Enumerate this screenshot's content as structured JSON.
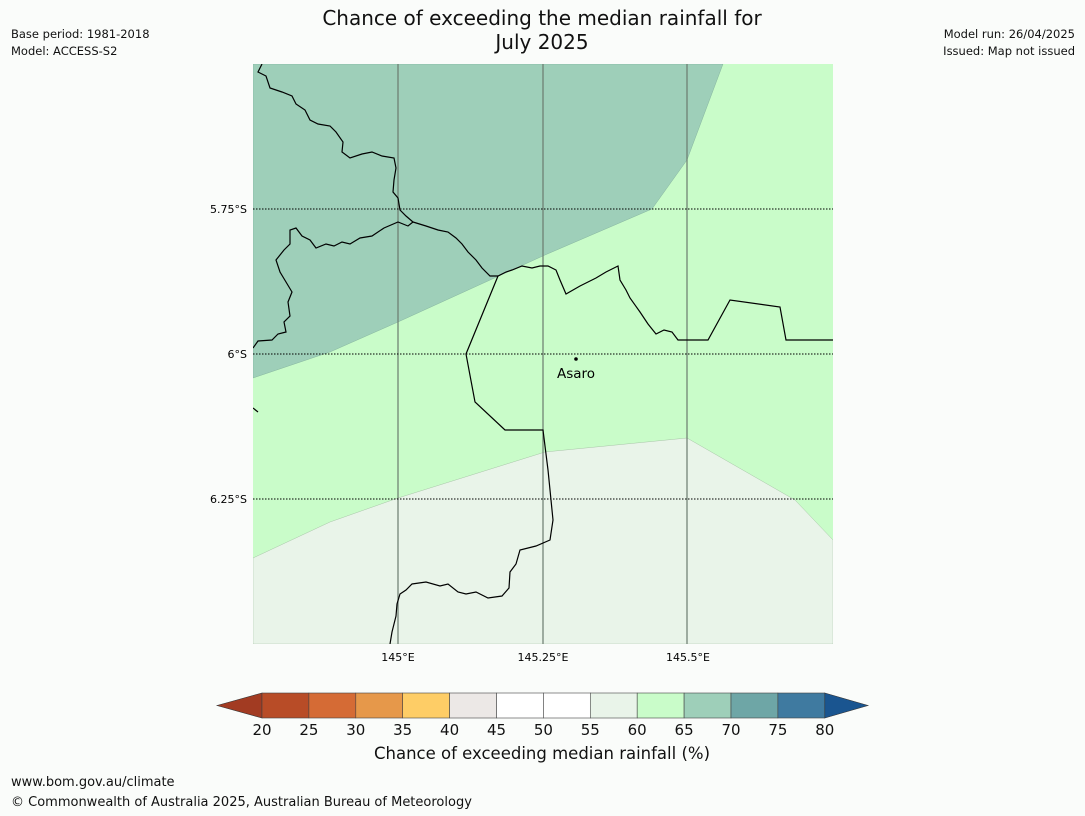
{
  "header": {
    "title_line1": "Chance of exceeding the median rainfall for",
    "title_line2": "July 2025",
    "base_period": "Base period: 1981-2018",
    "model": "Model: ACCESS-S2",
    "model_run": "Model run: 26/04/2025",
    "issued": "Issued: Map not issued"
  },
  "map": {
    "lat_labels": [
      "5.75°S",
      "6°S",
      "6.25°S"
    ],
    "lon_labels": [
      "145°E",
      "145.25°E",
      "145.5°E"
    ],
    "place": "Asaro",
    "colors": {
      "band_65_70": "#9ecfb9",
      "band_60_65": "#c9fcc9",
      "band_55_60": "#e9f4e9",
      "frame_bg": "#fafcfa"
    }
  },
  "colorbar": {
    "ticks": [
      "20",
      "25",
      "30",
      "35",
      "40",
      "45",
      "50",
      "55",
      "60",
      "65",
      "70",
      "75",
      "80"
    ],
    "colors": [
      "#a23b22",
      "#b84c27",
      "#d56b35",
      "#e6984a",
      "#fecd66",
      "#ece8e6",
      "#ffffff",
      "#ffffff",
      "#e9f4e9",
      "#c9fcc9",
      "#9ecfb9",
      "#6ea6a6",
      "#3f7aa0",
      "#1a5590"
    ],
    "label": "Chance of exceeding median rainfall (%)"
  },
  "footer": {
    "url": "www.bom.gov.au/climate",
    "copyright": "© Commonwealth of Australia 2025, Australian Bureau of Meteorology"
  }
}
